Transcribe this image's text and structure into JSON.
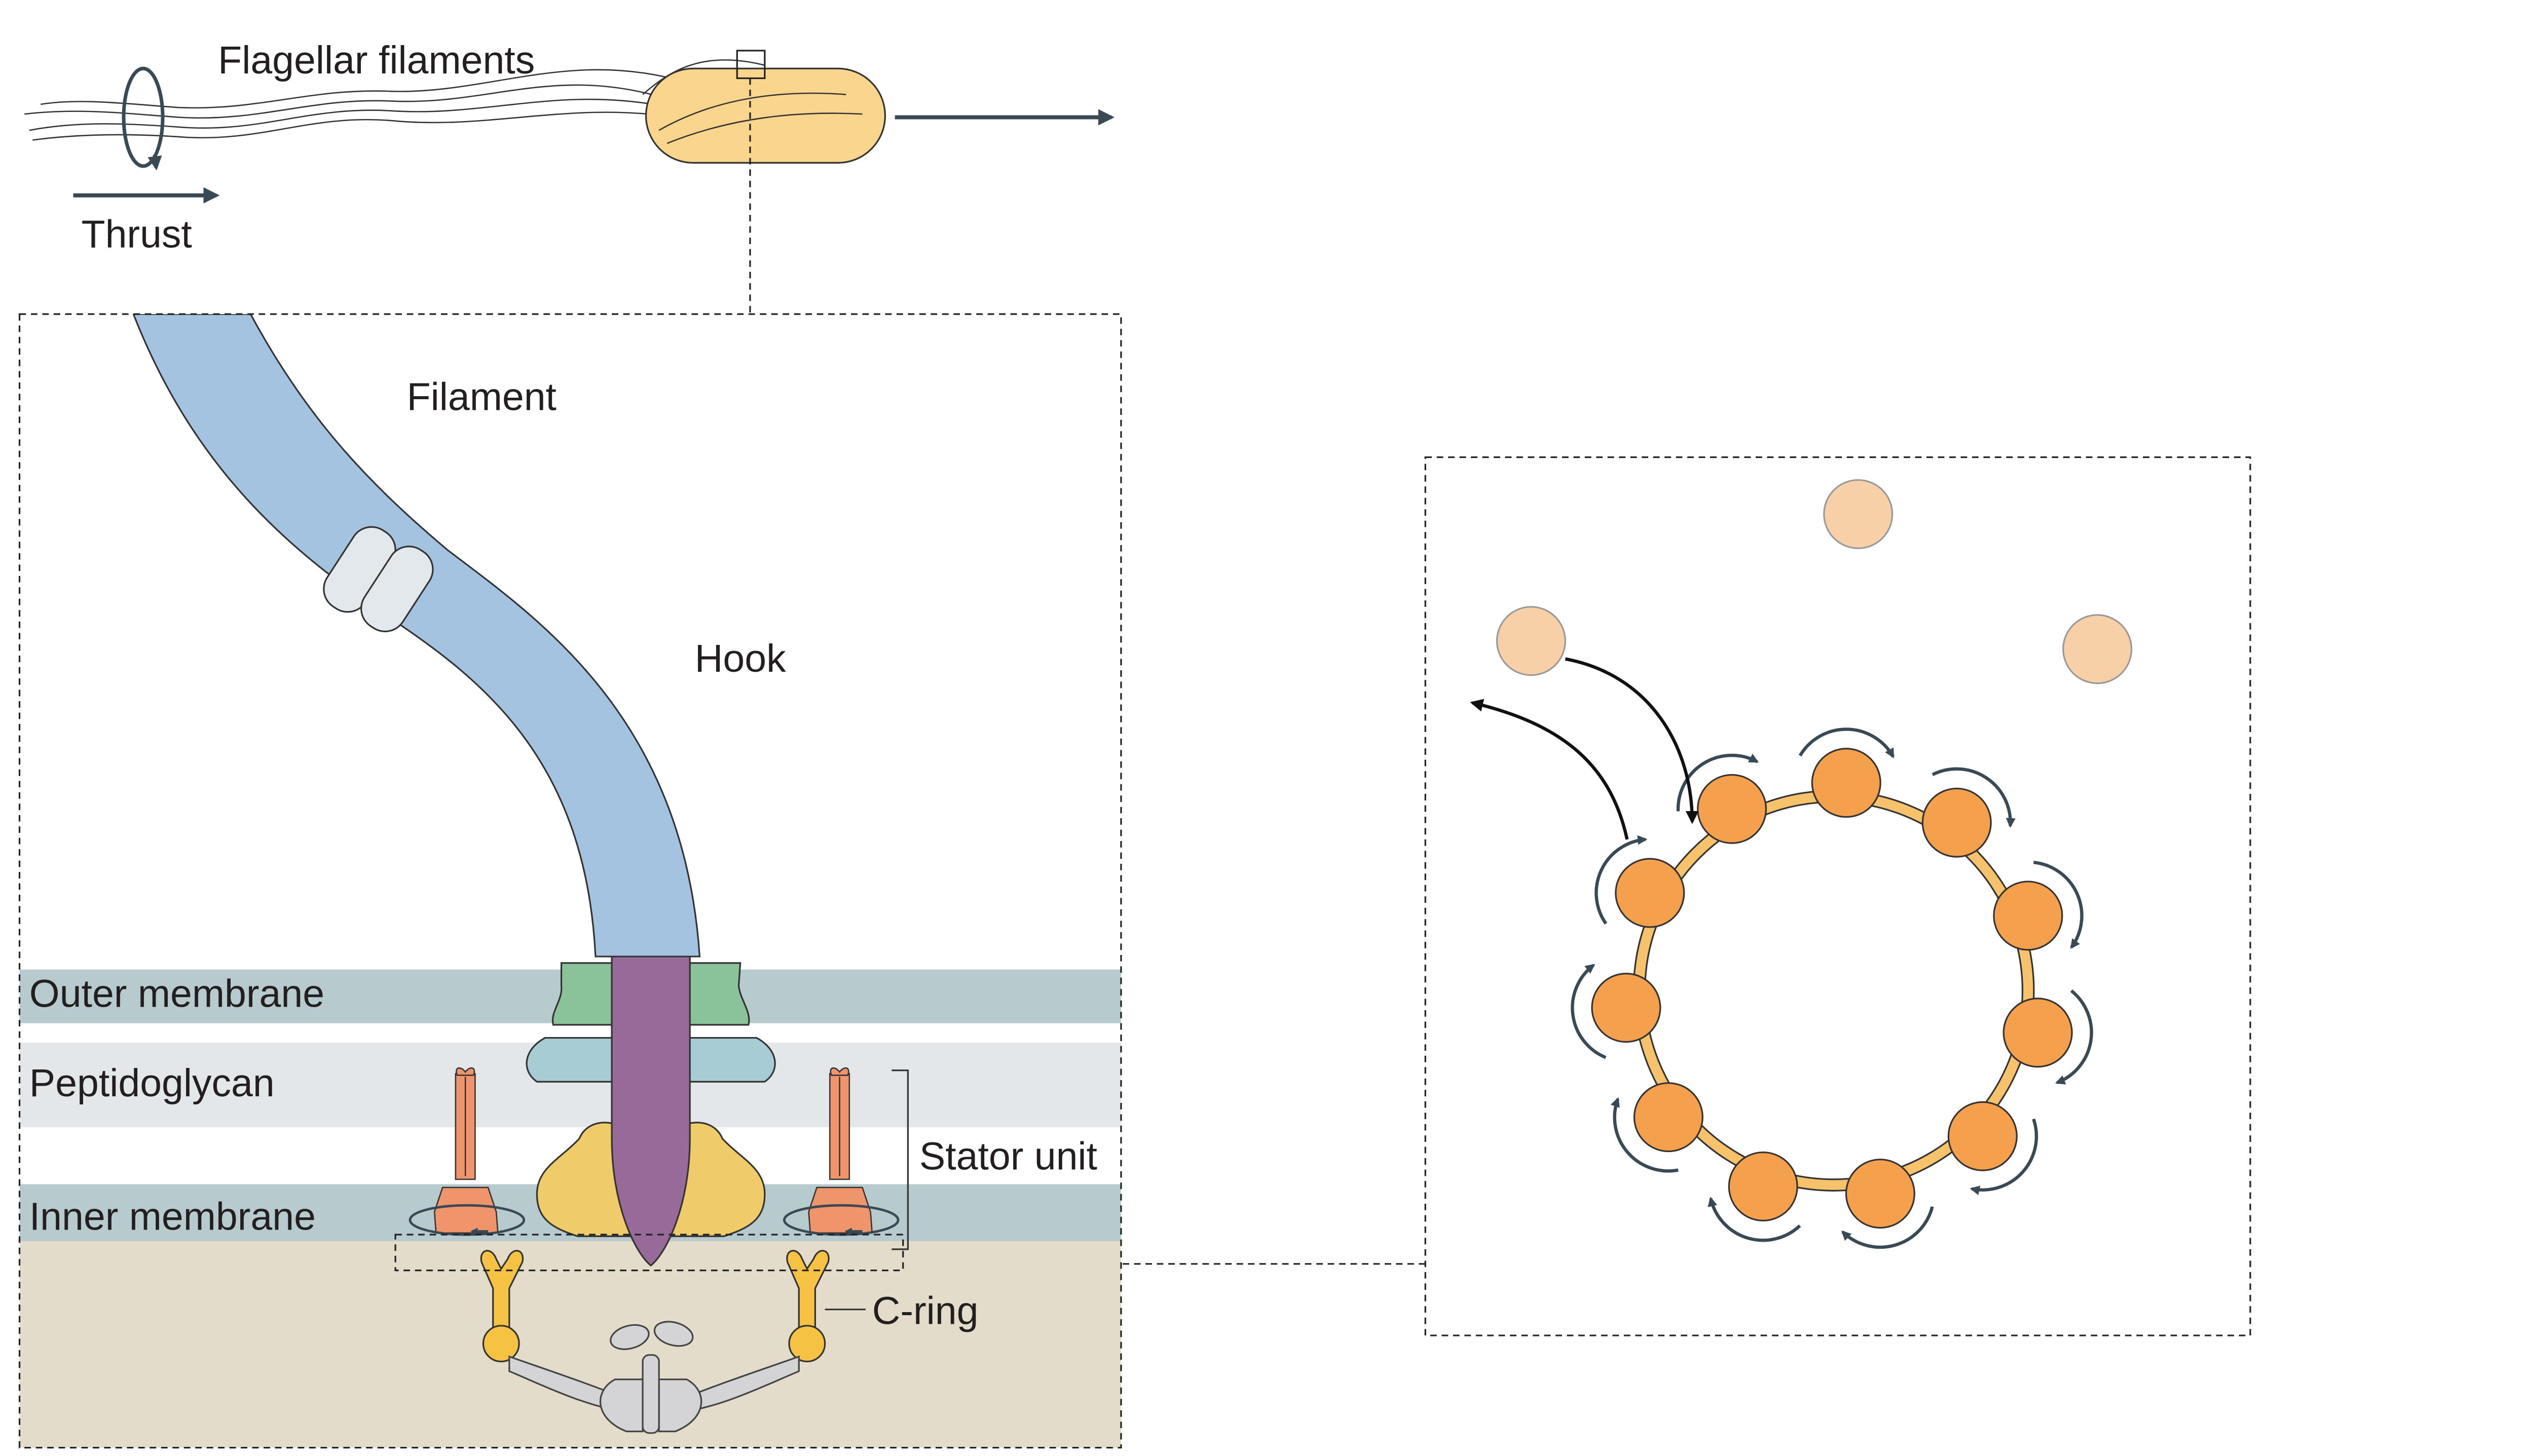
{
  "labels": {
    "flagellar_filaments": "Flagellar filaments",
    "thrust": "Thrust",
    "filament": "Filament",
    "hook": "Hook",
    "outer_membrane": "Outer membrane",
    "peptidoglycan": "Peptidoglycan",
    "inner_membrane": "Inner membrane",
    "stator_unit": "Stator unit",
    "c_ring": "C-ring"
  },
  "colors": {
    "cell_body": "#f9d58e",
    "filament": "#a3c3e0",
    "hook_collar": "#e3e8ec",
    "outer_membrane_band": "#b7cacd",
    "peptidoglycan_band": "#e3e7e9",
    "inner_membrane_band": "#b7cacd",
    "cytoplasm": "#e4dccb",
    "rod": "#976a9a",
    "l_ring": "#8ac39a",
    "p_ring": "#a7ccd3",
    "ms_ring": "#efcb6a",
    "stator": "#f0956b",
    "c_ring": "#f6c243",
    "export_apparatus": "#d4d4d6",
    "rotor_ring": "#f6c26b",
    "stator_bound": "#f4a04c",
    "stator_free": "#f8d0a8",
    "arrow": "#3a4a55"
  },
  "rotor_view": {
    "bound_stator_count": 11,
    "free_stator_count": 3
  }
}
